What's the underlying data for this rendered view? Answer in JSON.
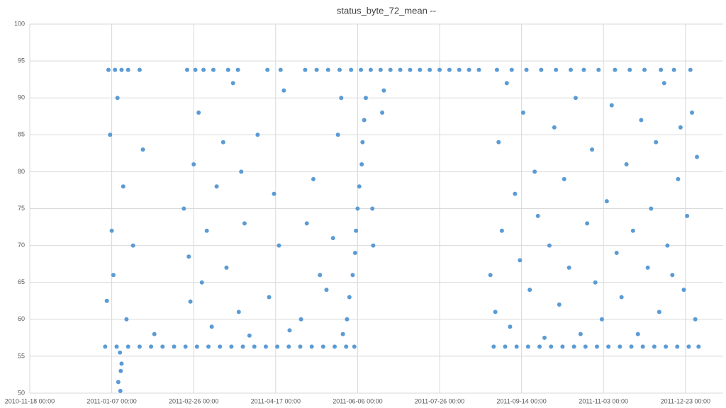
{
  "chart_data": {
    "type": "scatter",
    "title": "status_byte_72_mean --",
    "series": [
      {
        "color": "#5b9bd5",
        "x": [
          "2011-01-03 00:00",
          "2011-01-10 00:00",
          "2011-01-17 00:00",
          "2011-01-24 00:00",
          "2011-01-31 00:00",
          "2011-02-07 00:00",
          "2011-02-14 00:00",
          "2011-02-21 00:00",
          "2011-02-28 00:00",
          "2011-03-07 00:00",
          "2011-03-14 00:00",
          "2011-03-21 00:00",
          "2011-03-28 00:00",
          "2011-04-04 00:00",
          "2011-04-11 00:00",
          "2011-04-18 00:00",
          "2011-04-25 00:00",
          "2011-05-02 00:00",
          "2011-05-09 00:00",
          "2011-05-16 00:00",
          "2011-05-23 00:00",
          "2011-05-30 00:00",
          "2011-06-04 00:00",
          "2011-08-28 00:00",
          "2011-09-04 00:00",
          "2011-09-11 00:00",
          "2011-09-18 00:00",
          "2011-09-25 00:00",
          "2011-10-02 00:00",
          "2011-10-09 00:00",
          "2011-10-16 00:00",
          "2011-10-23 00:00",
          "2011-10-30 00:00",
          "2011-11-06 00:00",
          "2011-11-13 00:00",
          "2011-11-20 00:00",
          "2011-11-27 00:00",
          "2011-12-04 00:00",
          "2011-12-11 00:00",
          "2011-12-18 00:00",
          "2011-12-25 00:00",
          "2011-12-31 00:00",
          "2011-01-05 00:00",
          "2011-01-09 00:00",
          "2011-01-13 00:00",
          "2011-01-17 00:00",
          "2011-01-24 00:00",
          "2011-02-22 00:00",
          "2011-02-27 00:00",
          "2011-03-04 00:00",
          "2011-03-10 00:00",
          "2011-03-19 00:00",
          "2011-03-25 00:00",
          "2011-04-12 00:00",
          "2011-04-20 00:00",
          "2011-05-05 00:00",
          "2011-05-12 00:00",
          "2011-05-19 00:00",
          "2011-05-26 00:00",
          "2011-06-02 00:00",
          "2011-06-08 00:00",
          "2011-06-14 00:00",
          "2011-06-20 00:00",
          "2011-06-26 00:00",
          "2011-07-02 00:00",
          "2011-07-08 00:00",
          "2011-07-14 00:00",
          "2011-07-20 00:00",
          "2011-07-26 00:00",
          "2011-08-01 00:00",
          "2011-08-07 00:00",
          "2011-08-13 00:00",
          "2011-08-19 00:00",
          "2011-08-30 00:00",
          "2011-09-08 00:00",
          "2011-09-17 00:00",
          "2011-09-26 00:00",
          "2011-10-05 00:00",
          "2011-10-14 00:00",
          "2011-10-22 00:00",
          "2011-10-31 00:00",
          "2011-11-10 00:00",
          "2011-11-19 00:00",
          "2011-11-28 00:00",
          "2011-12-08 00:00",
          "2011-12-16 00:00",
          "2011-12-26 00:00",
          "2011-01-12 00:00",
          "2011-01-13 00:00",
          "2011-01-12 12:00",
          "2011-01-11 00:00",
          "2011-01-12 06:00",
          "2011-05-28 00:00",
          "2011-05-30 12:00",
          "2011-06-01 00:00",
          "2011-06-03 00:00",
          "2011-06-04 12:00",
          "2011-06-05 00:00",
          "2011-06-06 00:00",
          "2011-06-07 00:00",
          "2011-06-08 12:00",
          "2011-06-09 00:00",
          "2011-06-10 00:00",
          "2011-06-11 00:00",
          "2011-06-15 00:00",
          "2011-06-15 12:00",
          "2011-06-21 00:00",
          "2011-06-22 00:00",
          "2011-01-04 00:00",
          "2011-01-06 00:00",
          "2011-01-07 00:00",
          "2011-01-08 00:00",
          "2011-01-10 12:00",
          "2011-01-14 00:00",
          "2011-01-16 00:00",
          "2011-01-20 00:00",
          "2011-01-26 00:00",
          "2011-02-02 00:00",
          "2011-02-20 00:00",
          "2011-02-23 00:00",
          "2011-02-24 00:00",
          "2011-02-26 00:00",
          "2011-03-01 00:00",
          "2011-03-03 00:00",
          "2011-03-06 00:00",
          "2011-03-09 00:00",
          "2011-03-12 00:00",
          "2011-03-16 00:00",
          "2011-03-18 00:00",
          "2011-03-22 00:00",
          "2011-03-25 12:00",
          "2011-03-27 00:00",
          "2011-03-29 00:00",
          "2011-04-01 00:00",
          "2011-04-06 00:00",
          "2011-04-13 00:00",
          "2011-04-16 00:00",
          "2011-04-19 00:00",
          "2011-04-22 00:00",
          "2011-04-25 12:00",
          "2011-05-02 12:00",
          "2011-05-06 00:00",
          "2011-05-10 00:00",
          "2011-05-14 00:00",
          "2011-05-18 00:00",
          "2011-05-22 00:00",
          "2011-05-25 00:00",
          "2011-05-27 00:00",
          "2011-08-26 00:00",
          "2011-08-29 00:00",
          "2011-08-31 00:00",
          "2011-09-02 00:00",
          "2011-09-05 00:00",
          "2011-09-07 00:00",
          "2011-09-10 00:00",
          "2011-09-13 00:00",
          "2011-09-15 00:00",
          "2011-09-19 00:00",
          "2011-09-22 00:00",
          "2011-09-24 00:00",
          "2011-09-28 00:00",
          "2011-10-01 00:00",
          "2011-10-04 00:00",
          "2011-10-07 00:00",
          "2011-10-10 00:00",
          "2011-10-13 00:00",
          "2011-10-17 00:00",
          "2011-10-20 00:00",
          "2011-10-24 00:00",
          "2011-10-27 00:00",
          "2011-10-29 00:00",
          "2011-11-02 00:00",
          "2011-11-05 00:00",
          "2011-11-08 00:00",
          "2011-11-11 00:00",
          "2011-11-14 00:00",
          "2011-11-17 00:00",
          "2011-11-21 00:00",
          "2011-11-24 00:00",
          "2011-11-26 00:00",
          "2011-11-30 00:00",
          "2011-12-02 00:00",
          "2011-12-05 00:00",
          "2011-12-07 00:00",
          "2011-12-10 00:00",
          "2011-12-12 00:00",
          "2011-12-15 00:00",
          "2011-12-18 12:00",
          "2011-12-20 00:00",
          "2011-12-22 00:00",
          "2011-12-24 00:00",
          "2011-12-27 00:00",
          "2011-12-29 00:00",
          "2011-12-30 00:00"
        ],
        "values": [
          56.3,
          56.3,
          56.3,
          56.3,
          56.3,
          56.3,
          56.3,
          56.3,
          56.3,
          56.3,
          56.3,
          56.3,
          56.3,
          56.3,
          56.3,
          56.3,
          56.3,
          56.3,
          56.3,
          56.3,
          56.3,
          56.3,
          56.3,
          56.3,
          56.3,
          56.3,
          56.3,
          56.3,
          56.3,
          56.3,
          56.3,
          56.3,
          56.3,
          56.3,
          56.3,
          56.3,
          56.3,
          56.3,
          56.3,
          56.3,
          56.3,
          56.3,
          93.8,
          93.8,
          93.8,
          93.8,
          93.8,
          93.8,
          93.8,
          93.8,
          93.8,
          93.8,
          93.8,
          93.8,
          93.8,
          93.8,
          93.8,
          93.8,
          93.8,
          93.8,
          93.8,
          93.8,
          93.8,
          93.8,
          93.8,
          93.8,
          93.8,
          93.8,
          93.8,
          93.8,
          93.8,
          93.8,
          93.8,
          93.8,
          93.8,
          93.8,
          93.8,
          93.8,
          93.8,
          93.8,
          93.8,
          93.8,
          93.8,
          93.8,
          93.8,
          93.8,
          93.8,
          55.5,
          54,
          53,
          51.5,
          50.3,
          58,
          60,
          63,
          66,
          69,
          72,
          75,
          78,
          81,
          84,
          87,
          90,
          75,
          70,
          88,
          91,
          62.5,
          85,
          72,
          66,
          90,
          78,
          60,
          70,
          83,
          58,
          75,
          68.5,
          62.4,
          81,
          88,
          65,
          72,
          59,
          78,
          84,
          67,
          92,
          61,
          80,
          73,
          57.8,
          85,
          63,
          77,
          70,
          91,
          58.5,
          60,
          73,
          79,
          66,
          64,
          71,
          85,
          90,
          66,
          61,
          84,
          72,
          92,
          59,
          77,
          68,
          88,
          64,
          80,
          74,
          57.5,
          70,
          86,
          62,
          79,
          67,
          90,
          58,
          73,
          83,
          65,
          60,
          76,
          89,
          69,
          63,
          81,
          72,
          58,
          87,
          67,
          75,
          84,
          61,
          92,
          70,
          66,
          79,
          86,
          64,
          74,
          88,
          60,
          82
        ]
      }
    ],
    "xlim": [
      "2010-11-18 00:00",
      "2012-01-15 00:00"
    ],
    "xticks": [
      "2010-11-18 00:00",
      "2011-01-07 00:00",
      "2011-02-26 00:00",
      "2011-04-17 00:00",
      "2011-06-06 00:00",
      "2011-07-26 00:00",
      "2011-09-14 00:00",
      "2011-11-03 00:00",
      "2011-12-23 00:00"
    ],
    "ylim": [
      50,
      100
    ],
    "yticks": [
      50,
      55,
      60,
      65,
      70,
      75,
      80,
      85,
      90,
      95,
      100
    ],
    "grid": true
  }
}
